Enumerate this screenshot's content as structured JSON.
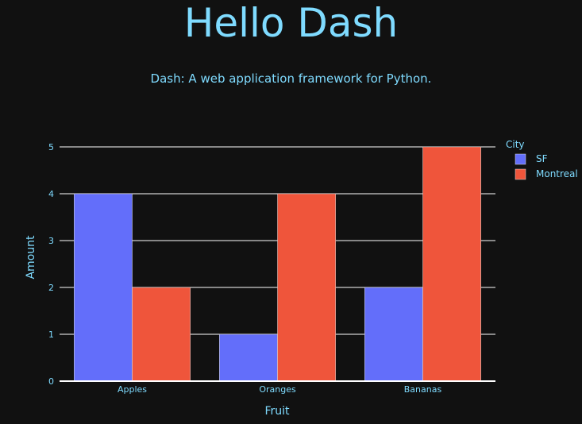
{
  "header": {
    "title": "Hello Dash",
    "subtitle": "Dash: A web application framework for Python."
  },
  "colors": {
    "background": "#111111",
    "text": "#7FDBFF",
    "grid": "#ffffff",
    "bar_outline": "#dddddd"
  },
  "chart_data": {
    "type": "bar",
    "barmode": "group",
    "categories": [
      "Apples",
      "Oranges",
      "Bananas"
    ],
    "series": [
      {
        "name": "SF",
        "values": [
          4,
          1,
          2
        ],
        "color": "#636EFA"
      },
      {
        "name": "Montreal",
        "values": [
          2,
          4,
          5
        ],
        "color": "#EF553B"
      }
    ],
    "xlabel": "Fruit",
    "ylabel": "Amount",
    "ylim": [
      0,
      5
    ],
    "yticks": [
      0,
      1,
      2,
      3,
      4,
      5
    ],
    "legend_title": "City",
    "legend_position": "top-right",
    "grid": true
  }
}
